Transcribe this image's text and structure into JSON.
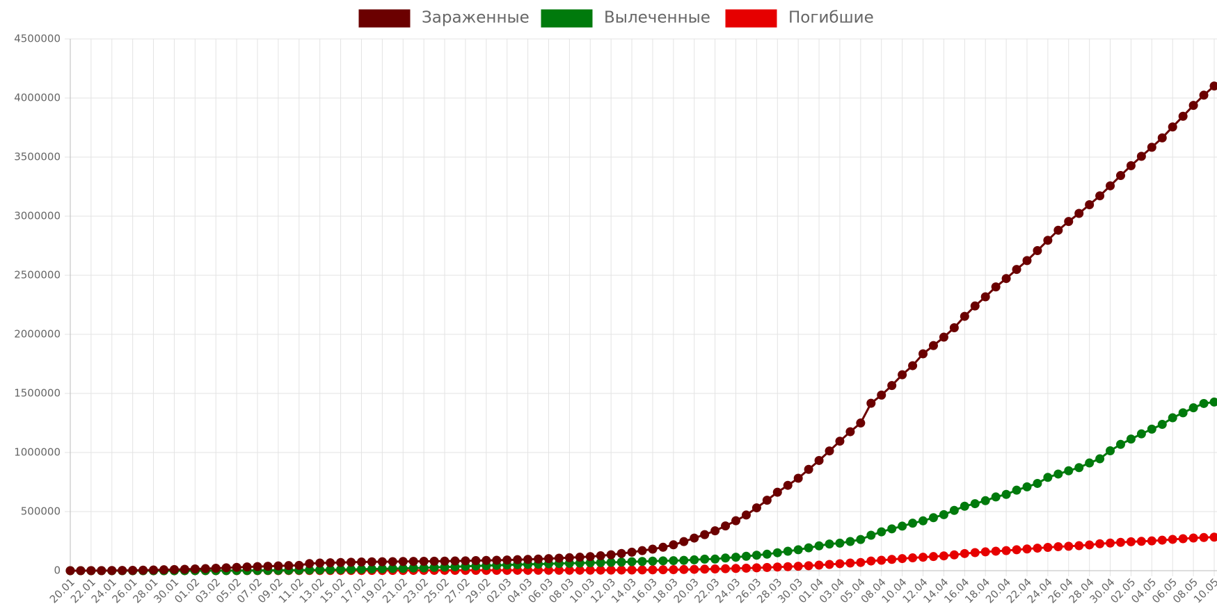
{
  "chart_data": {
    "type": "line",
    "legend": "top",
    "grid": true,
    "ylim": [
      0,
      4500000
    ],
    "yticks": [
      0,
      500000,
      1000000,
      1500000,
      2000000,
      2500000,
      3000000,
      3500000,
      4000000,
      4500000
    ],
    "categories": [
      "20.01",
      null,
      "22.01",
      null,
      "24.01",
      null,
      "26.01",
      null,
      "28.01",
      null,
      "30.01",
      null,
      "01.02",
      null,
      "03.02",
      null,
      "05.02",
      null,
      "07.02",
      null,
      "09.02",
      null,
      "11.02",
      null,
      "13.02",
      null,
      "15.02",
      null,
      "17.02",
      null,
      "19.02",
      null,
      "21.02",
      null,
      "23.02",
      null,
      "25.02",
      null,
      "27.02",
      null,
      "29.02",
      null,
      "02.03",
      null,
      "04.03",
      null,
      "06.03",
      null,
      "08.03",
      null,
      "10.03",
      null,
      "12.03",
      null,
      "14.03",
      null,
      "16.03",
      null,
      "18.03",
      null,
      "20.03",
      null,
      "22.03",
      null,
      "24.03",
      null,
      "26.03",
      null,
      "28.03",
      null,
      "30.03",
      null,
      "01.04",
      null,
      "03.04",
      null,
      "05.04",
      null,
      "08.04",
      null,
      "10.04",
      null,
      "12.04",
      null,
      "14.04",
      null,
      "16.04",
      null,
      "18.04",
      null,
      "20.04",
      null,
      "22.04",
      null,
      "24.04",
      null,
      "26.04",
      null,
      "28.04",
      null,
      "30.04",
      null,
      "02.05",
      null,
      "04.05",
      null,
      "06.05",
      null,
      "08.05",
      null,
      "10.05"
    ],
    "series": [
      {
        "name": "Зараженные",
        "color": "#6b0000",
        "values": [
          282,
          314,
          581,
          846,
          1320,
          2014,
          2798,
          4593,
          6065,
          7818,
          9826,
          11953,
          14557,
          17391,
          20630,
          24554,
          28276,
          31481,
          34886,
          37558,
          40554,
          43103,
          45171,
          60381,
          64543,
          67103,
          69266,
          71332,
          73327,
          75191,
          75723,
          76719,
          77804,
          78812,
          79339,
          80132,
          80995,
          82101,
          83365,
          85203,
          87024,
          88585,
          90443,
          93016,
          95314,
          98425,
          102050,
          106099,
          109991,
          114381,
          118948,
          126214,
          134576,
          145483,
          156653,
          169593,
          182490,
          198238,
          218822,
          246088,
          275947,
          305170,
          337549,
          378800,
          422574,
          471035,
          531974,
          596366,
          663828,
          722288,
          782365,
          857487,
          932605,
          1013466,
          1095917,
          1176060,
          1249754,
          1416749,
          1485866,
          1567063,
          1658158,
          1734914,
          1835165,
          1904825,
          1976191,
          2056054,
          2152437,
          2240190,
          2317758,
          2401378,
          2472259,
          2549123,
          2624068,
          2708885,
          2795937,
          2881140,
          2955033,
          3023722,
          3097229,
          3172287,
          3256910,
          3343777,
          3427343,
          3506729,
          3583055,
          3662691,
          3755341,
          3845718,
          3937599,
          4024009,
          4101699
        ]
      },
      {
        "name": "Вылеченные",
        "color": "#007a0c",
        "values": [
          0,
          0,
          28,
          30,
          36,
          49,
          49,
          107,
          125,
          141,
          171,
          243,
          328,
          475,
          630,
          890,
          1150,
          1540,
          2050,
          2650,
          3300,
          3900,
          4700,
          5900,
          6700,
          8100,
          9400,
          10800,
          12600,
          14400,
          16100,
          18200,
          18900,
          22700,
          23200,
          27900,
          30400,
          33300,
          36700,
          39800,
          42700,
          45600,
          48200,
          51200,
          53800,
          55900,
          58300,
          60700,
          62500,
          64400,
          67000,
          68300,
          70300,
          72600,
          76000,
          78000,
          80800,
          83300,
          84900,
          87400,
          91600,
          97800,
          98300,
          107000,
          113800,
          122100,
          130900,
          139400,
          151800,
          164600,
          177100,
          193200,
          210200,
          225800,
          233200,
          247000,
          264000,
          300000,
          328600,
          353900,
          377000,
          402000,
          421700,
          448600,
          474300,
          510100,
          545600,
          567200,
          592300,
          623900,
          645700,
          681400,
          709700,
          738500,
          789400,
          817900,
          845400,
          872100,
          911500,
          946800,
          1014800,
          1069000,
          1113900,
          1157800,
          1197800,
          1238000,
          1293800,
          1336200,
          1378400,
          1415000,
          1427000
        ]
      },
      {
        "name": "Погибшие",
        "color": "#e60000",
        "values": [
          6,
          6,
          17,
          25,
          41,
          56,
          80,
          106,
          132,
          170,
          213,
          259,
          304,
          362,
          426,
          492,
          565,
          638,
          724,
          813,
          910,
          1018,
          1115,
          1261,
          1383,
          1526,
          1669,
          1775,
          1873,
          2009,
          2126,
          2247,
          2360,
          2460,
          2618,
          2699,
          2763,
          2800,
          2858,
          2923,
          2977,
          3050,
          3117,
          3202,
          3285,
          3387,
          3494,
          3599,
          3827,
          4025,
          4296,
          4628,
          4981,
          5428,
          5833,
          6520,
          7162,
          7979,
          8957,
          10032,
          11380,
          12933,
          14633,
          16562,
          18893,
          21288,
          24350,
          27341,
          30876,
          34000,
          37600,
          42100,
          47200,
          53100,
          59100,
          64600,
          69400,
          81900,
          88300,
          95500,
          102500,
          108500,
          114100,
          119500,
          125300,
          134000,
          145100,
          153000,
          159200,
          165000,
          169900,
          177300,
          183700,
          190800,
          197100,
          202800,
          206600,
          211400,
          217900,
          228000,
          233900,
          239600,
          244700,
          248200,
          252400,
          258400,
          265000,
          270700,
          276300,
          280600,
          283900
        ]
      }
    ]
  }
}
